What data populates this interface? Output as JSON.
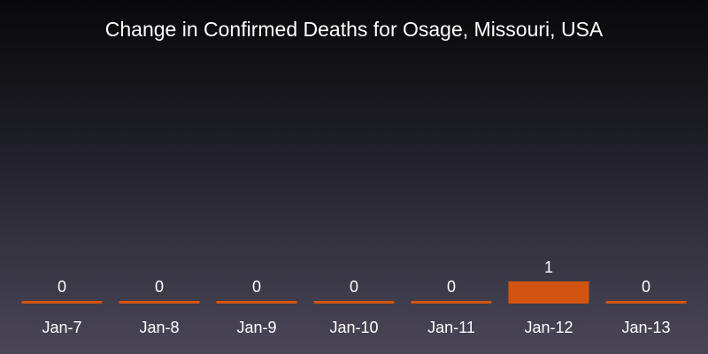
{
  "chart_data": {
    "type": "bar",
    "title": "Change in Confirmed Deaths for Osage, Missouri, USA",
    "categories": [
      "Jan-7",
      "Jan-8",
      "Jan-9",
      "Jan-10",
      "Jan-11",
      "Jan-12",
      "Jan-13"
    ],
    "values": [
      0,
      0,
      0,
      0,
      0,
      1,
      0
    ],
    "value_labels": [
      "0",
      "0",
      "0",
      "0",
      "0",
      "1",
      "0"
    ],
    "xlabel": "",
    "ylabel": "",
    "grid": false,
    "legend": "none",
    "colors": {
      "bar": "#d35410",
      "text": "#ffffff"
    }
  }
}
